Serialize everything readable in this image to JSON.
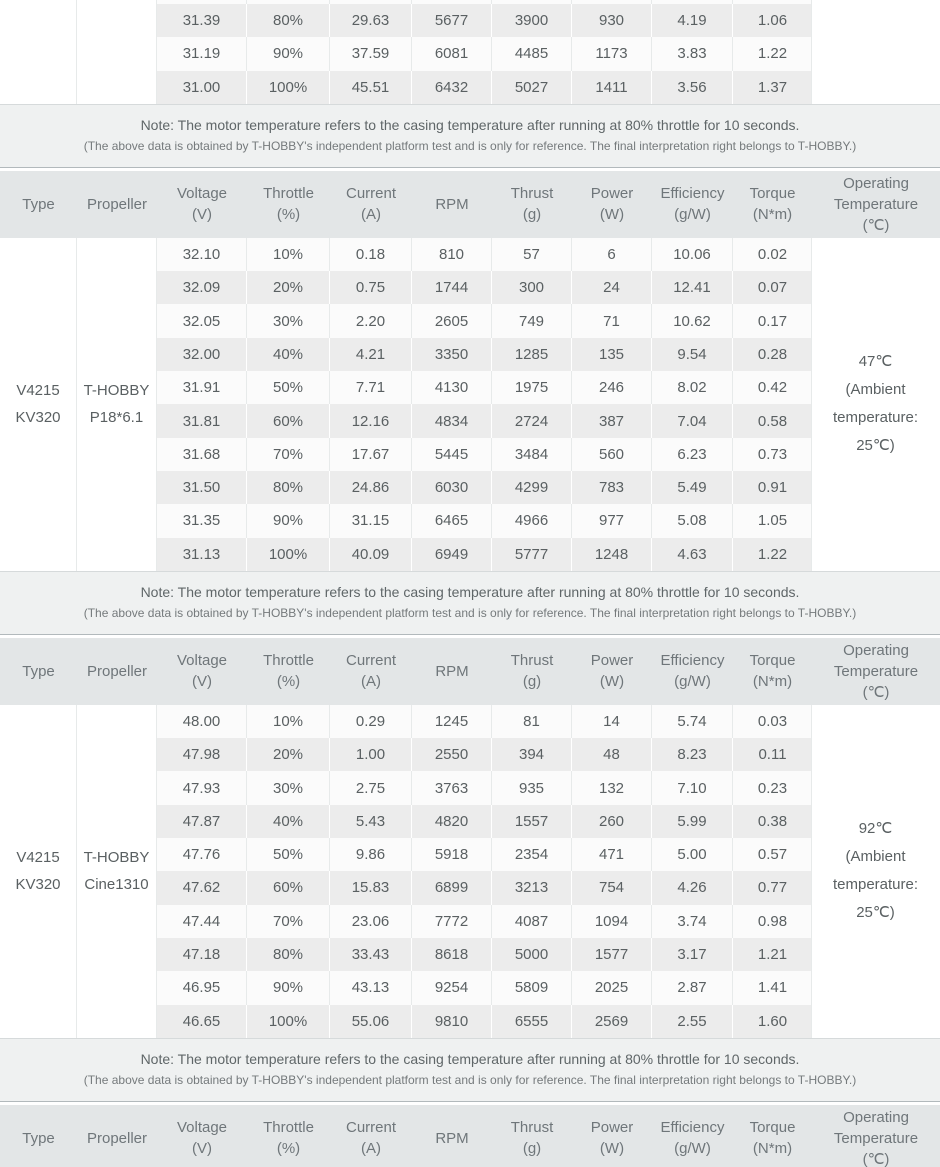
{
  "columns": [
    {
      "label": "Type",
      "sub": ""
    },
    {
      "label": "Propeller",
      "sub": ""
    },
    {
      "label": "Voltage",
      "sub": "(V)"
    },
    {
      "label": "Throttle",
      "sub": "(%)"
    },
    {
      "label": "Current",
      "sub": "(A)"
    },
    {
      "label": "RPM",
      "sub": ""
    },
    {
      "label": "Thrust",
      "sub": "(g)"
    },
    {
      "label": "Power",
      "sub": "(W)"
    },
    {
      "label": "Efficiency",
      "sub": "(g/W)"
    },
    {
      "label": "Torque",
      "sub": "(N*m)"
    },
    {
      "label": "Operating Temperature",
      "sub": "(℃)"
    }
  ],
  "note": {
    "line1": "Note: The motor temperature refers to the casing temperature after running at 80% throttle for 10 seconds.",
    "line2": "(The above data is obtained by T-HOBBY's independent platform test and is only for reference. The final interpretation right belongs to T-HOBBY.)"
  },
  "top_partial_table": {
    "rows": [
      [
        "31.39",
        "80%",
        "29.63",
        "5677",
        "3900",
        "930",
        "4.19",
        "1.06"
      ],
      [
        "31.19",
        "90%",
        "37.59",
        "6081",
        "4485",
        "1173",
        "3.83",
        "1.22"
      ],
      [
        "31.00",
        "100%",
        "45.51",
        "6432",
        "5027",
        "1411",
        "3.56",
        "1.37"
      ]
    ]
  },
  "tables": [
    {
      "type": "V4215 KV320",
      "type_lines": [
        "V4215",
        "KV320"
      ],
      "propeller": "T-HOBBY P18*6.1",
      "propeller_lines": [
        "T-HOBBY",
        "P18*6.1"
      ],
      "operating_temperature": "47℃ (Ambient temperature: 25℃)",
      "temperature_lines": [
        "47℃",
        "(Ambient",
        "temperature:",
        "25℃)"
      ],
      "rows": [
        [
          "32.10",
          "10%",
          "0.18",
          "810",
          "57",
          "6",
          "10.06",
          "0.02"
        ],
        [
          "32.09",
          "20%",
          "0.75",
          "1744",
          "300",
          "24",
          "12.41",
          "0.07"
        ],
        [
          "32.05",
          "30%",
          "2.20",
          "2605",
          "749",
          "71",
          "10.62",
          "0.17"
        ],
        [
          "32.00",
          "40%",
          "4.21",
          "3350",
          "1285",
          "135",
          "9.54",
          "0.28"
        ],
        [
          "31.91",
          "50%",
          "7.71",
          "4130",
          "1975",
          "246",
          "8.02",
          "0.42"
        ],
        [
          "31.81",
          "60%",
          "12.16",
          "4834",
          "2724",
          "387",
          "7.04",
          "0.58"
        ],
        [
          "31.68",
          "70%",
          "17.67",
          "5445",
          "3484",
          "560",
          "6.23",
          "0.73"
        ],
        [
          "31.50",
          "80%",
          "24.86",
          "6030",
          "4299",
          "783",
          "5.49",
          "0.91"
        ],
        [
          "31.35",
          "90%",
          "31.15",
          "6465",
          "4966",
          "977",
          "5.08",
          "1.05"
        ],
        [
          "31.13",
          "100%",
          "40.09",
          "6949",
          "5777",
          "1248",
          "4.63",
          "1.22"
        ]
      ]
    },
    {
      "type": "V4215 KV320",
      "type_lines": [
        "V4215",
        "KV320"
      ],
      "propeller": "T-HOBBY Cine1310",
      "propeller_lines": [
        "T-HOBBY",
        "Cine1310"
      ],
      "operating_temperature": "92℃ (Ambient temperature: 25℃)",
      "temperature_lines": [
        "92℃",
        "(Ambient",
        "temperature:",
        "25℃)"
      ],
      "rows": [
        [
          "48.00",
          "10%",
          "0.29",
          "1245",
          "81",
          "14",
          "5.74",
          "0.03"
        ],
        [
          "47.98",
          "20%",
          "1.00",
          "2550",
          "394",
          "48",
          "8.23",
          "0.11"
        ],
        [
          "47.93",
          "30%",
          "2.75",
          "3763",
          "935",
          "132",
          "7.10",
          "0.23"
        ],
        [
          "47.87",
          "40%",
          "5.43",
          "4820",
          "1557",
          "260",
          "5.99",
          "0.38"
        ],
        [
          "47.76",
          "50%",
          "9.86",
          "5918",
          "2354",
          "471",
          "5.00",
          "0.57"
        ],
        [
          "47.62",
          "60%",
          "15.83",
          "6899",
          "3213",
          "754",
          "4.26",
          "0.77"
        ],
        [
          "47.44",
          "70%",
          "23.06",
          "7772",
          "4087",
          "1094",
          "3.74",
          "0.98"
        ],
        [
          "47.18",
          "80%",
          "33.43",
          "8618",
          "5000",
          "1577",
          "3.17",
          "1.21"
        ],
        [
          "46.95",
          "90%",
          "43.13",
          "9254",
          "5809",
          "2025",
          "2.87",
          "1.41"
        ],
        [
          "46.65",
          "100%",
          "55.06",
          "9810",
          "6555",
          "2569",
          "2.55",
          "1.60"
        ]
      ]
    }
  ],
  "colors": {
    "header-bg": "#e3e6e7",
    "header-text": "#6f767a",
    "note-bg": "#eff1f1",
    "note-text-primary": "#5f6668",
    "note-text-secondary": "#757a7c",
    "row-white": "#fbfbfb",
    "row-gray": "#ececec",
    "cell-text": "#5a6062",
    "sep-gray": "#e7eaea",
    "note-border-top": "#d6dadb",
    "note-border-bottom": "#b2b9bc"
  }
}
